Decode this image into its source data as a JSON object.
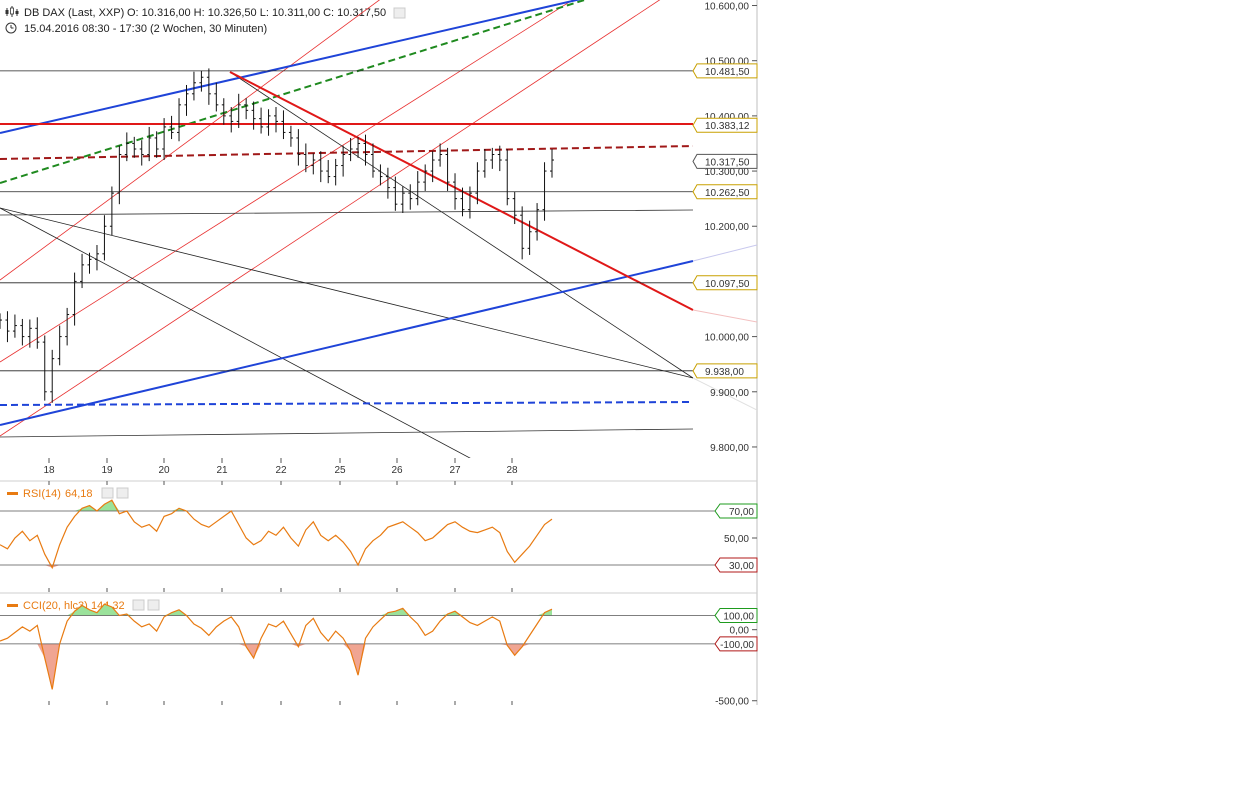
{
  "header": {
    "instrument": "DB DAX (Last, XXP)",
    "ohlc": "O: 10.316,00  H: 10.326,50  L: 10.311,00  C: 10.317,50",
    "period": "15.04.2016 08:30 - 17:30 (2 Wochen, 30 Minuten)"
  },
  "chart_data": [
    {
      "type": "candlestick",
      "title": "DB DAX (Last, XXP)",
      "x_ticks": [
        "18",
        "19",
        "20",
        "21",
        "22",
        "25",
        "26",
        "27",
        "28"
      ],
      "y_ticks": [
        {
          "value": 10600,
          "label": "10.600,00"
        },
        {
          "value": 10500,
          "label": "10.500,00"
        },
        {
          "value": 10400,
          "label": "10.400,00"
        },
        {
          "value": 10300,
          "label": "10.300,00"
        },
        {
          "value": 10200,
          "label": "10.200,00"
        },
        {
          "value": 10000,
          "label": "10.000,00"
        },
        {
          "value": 9900,
          "label": "9.900,00"
        },
        {
          "value": 9800,
          "label": "9.800,00"
        }
      ],
      "ylim": [
        9780,
        10610
      ],
      "price_markers": [
        {
          "value": 10481.5,
          "label": "10.481,50",
          "color": "#c8a000"
        },
        {
          "value": 10383.12,
          "label": "10.383,12",
          "color": "#c8a000"
        },
        {
          "value": 10317.5,
          "label": "10.317,50",
          "color": "#555555"
        },
        {
          "value": 10262.5,
          "label": "10.262,50",
          "color": "#c8a000"
        },
        {
          "value": 10097.5,
          "label": "10.097,50",
          "color": "#c8a000"
        },
        {
          "value": 9938.0,
          "label": "9.938,00",
          "color": "#c8a000"
        }
      ],
      "close_series": [
        10030,
        10010,
        10020,
        10000,
        10015,
        9990,
        9900,
        9960,
        10000,
        10040,
        10100,
        10130,
        10140,
        10150,
        10200,
        10260,
        10330,
        10350,
        10340,
        10330,
        10360,
        10340,
        10380,
        10370,
        10420,
        10440,
        10460,
        10470,
        10440,
        10420,
        10400,
        10390,
        10420,
        10410,
        10395,
        10380,
        10400,
        10390,
        10370,
        10360,
        10330,
        10310,
        10320,
        10300,
        10290,
        10310,
        10330,
        10340,
        10350,
        10330,
        10300,
        10290,
        10270,
        10240,
        10260,
        10250,
        10280,
        10300,
        10320,
        10330,
        10280,
        10250,
        10230,
        10260,
        10300,
        10320,
        10330,
        10320,
        10250,
        10220,
        10160,
        10190,
        10230,
        10300,
        10320
      ]
    },
    {
      "type": "line",
      "title": "RSI(14)",
      "value_label": "64,18",
      "levels": [
        {
          "value": 70,
          "label": "70,00",
          "color": "#1e9b1e"
        },
        {
          "value": 30,
          "label": "30,00",
          "color": "#b01818"
        }
      ],
      "y_ticks": [
        {
          "value": 50,
          "label": "50,00"
        }
      ],
      "ylim": [
        10,
        90
      ],
      "series": [
        {
          "values": [
            45,
            42,
            50,
            55,
            48,
            52,
            38,
            28,
            45,
            58,
            66,
            72,
            74,
            70,
            75,
            78,
            68,
            70,
            62,
            58,
            60,
            55,
            66,
            68,
            72,
            70,
            64,
            60,
            58,
            62,
            66,
            70,
            60,
            50,
            45,
            48,
            55,
            52,
            58,
            50,
            44,
            56,
            62,
            52,
            48,
            52,
            47,
            40,
            30,
            42,
            48,
            52,
            58,
            60,
            62,
            58,
            54,
            48,
            50,
            55,
            60,
            62,
            58,
            55,
            54,
            56,
            58,
            54,
            40,
            32,
            38,
            44,
            52,
            60,
            64
          ]
        }
      ]
    },
    {
      "type": "line",
      "title": "CCI(20, hlc3)",
      "value_label": "144,32",
      "levels": [
        {
          "value": 100,
          "label": "100,00",
          "color": "#1e9b1e"
        },
        {
          "value": -100,
          "label": "-100,00",
          "color": "#b01818"
        }
      ],
      "y_ticks": [
        {
          "value": 0,
          "label": "0,00"
        },
        {
          "value": -500,
          "label": "-500,00"
        }
      ],
      "ylim": [
        -530,
        230
      ],
      "series": [
        {
          "values": [
            -80,
            -60,
            -20,
            20,
            -10,
            30,
            -200,
            -420,
            -100,
            60,
            130,
            170,
            140,
            120,
            180,
            160,
            100,
            110,
            60,
            20,
            40,
            -10,
            90,
            120,
            140,
            100,
            40,
            10,
            -40,
            20,
            60,
            90,
            20,
            -120,
            -200,
            -60,
            40,
            20,
            60,
            -30,
            -120,
            30,
            80,
            -20,
            -80,
            -10,
            -60,
            -150,
            -320,
            -60,
            20,
            70,
            120,
            130,
            150,
            90,
            40,
            -40,
            -10,
            60,
            110,
            130,
            90,
            50,
            30,
            60,
            90,
            60,
            -110,
            -180,
            -120,
            -40,
            40,
            120,
            144
          ]
        }
      ]
    }
  ]
}
